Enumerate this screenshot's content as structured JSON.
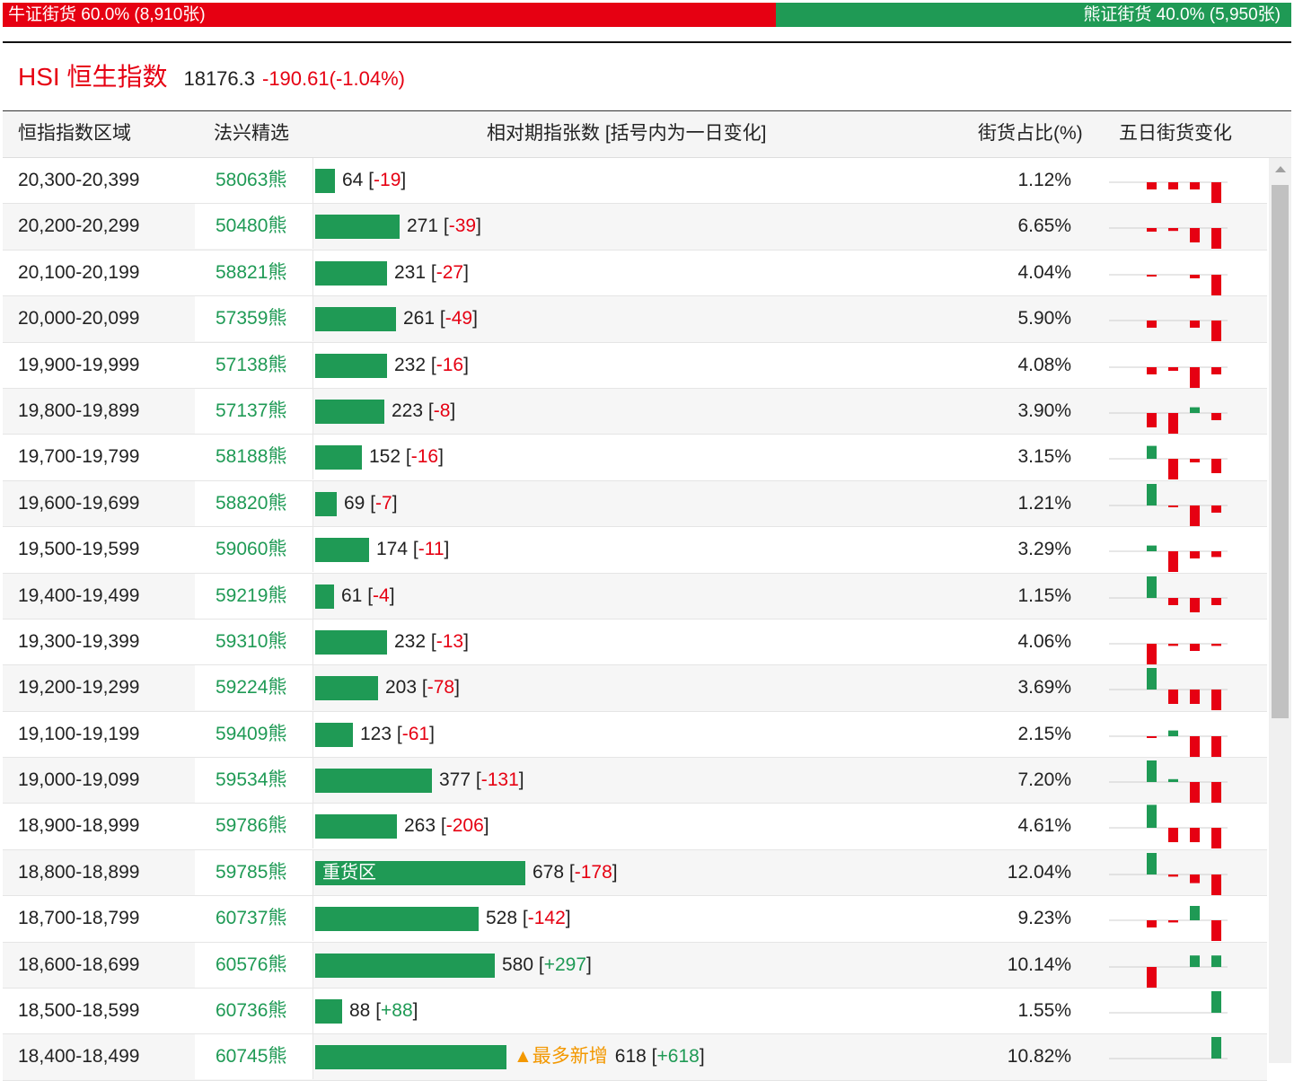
{
  "ratio": {
    "bull_label": "牛证街货 60.0% (8,910张)",
    "bull_fraction": 0.6,
    "bear_label": "熊证街货 40.0% (5,950张)",
    "bear_fraction": 0.4
  },
  "index": {
    "name": "HSI 恒生指数",
    "value": "18176.3",
    "change": "-190.61(-1.04%)"
  },
  "table": {
    "headers": {
      "range": "恒指指数区域",
      "pick": "法兴精选",
      "contracts": "相对期指张数 [括号内为一日变化]",
      "ratio": "街货占比(%)",
      "trend": "五日街货变化"
    },
    "max_bar_value": 678,
    "rows": [
      {
        "range": "20,300-20,399",
        "code": "58063熊",
        "count": "64",
        "delta": "-19",
        "pct": "1.12%",
        "value": 64,
        "trend": [
          0,
          -1,
          -1,
          -1,
          -3
        ]
      },
      {
        "range": "20,200-20,299",
        "code": "50480熊",
        "count": "271",
        "delta": "-39",
        "pct": "6.65%",
        "value": 271,
        "trend": [
          0,
          -0.5,
          -0.4,
          -2,
          -3
        ]
      },
      {
        "range": "20,100-20,199",
        "code": "58821熊",
        "count": "231",
        "delta": "-27",
        "pct": "4.04%",
        "value": 231,
        "trend": [
          0,
          -0.2,
          0,
          -0.5,
          -3
        ]
      },
      {
        "range": "20,000-20,099",
        "code": "57359熊",
        "count": "261",
        "delta": "-49",
        "pct": "5.90%",
        "value": 261,
        "trend": [
          0,
          -1,
          0,
          -1,
          -3
        ]
      },
      {
        "range": "19,900-19,999",
        "code": "57138熊",
        "count": "232",
        "delta": "-16",
        "pct": "4.08%",
        "value": 232,
        "trend": [
          0,
          -1,
          -0.5,
          -3,
          -1
        ]
      },
      {
        "range": "19,800-19,899",
        "code": "57137熊",
        "count": "223",
        "delta": "-8",
        "pct": "3.90%",
        "value": 223,
        "trend": [
          0,
          -2,
          -3,
          0.8,
          -1
        ]
      },
      {
        "range": "19,700-19,799",
        "code": "58188熊",
        "count": "152",
        "delta": "-16",
        "pct": "3.15%",
        "value": 152,
        "trend": [
          0,
          1.8,
          -3,
          -0.5,
          -2
        ]
      },
      {
        "range": "19,600-19,699",
        "code": "58820熊",
        "count": "69",
        "delta": "-7",
        "pct": "1.21%",
        "value": 69,
        "trend": [
          0,
          3,
          -0.2,
          -3,
          -1
        ]
      },
      {
        "range": "19,500-19,599",
        "code": "59060熊",
        "count": "174",
        "delta": "-11",
        "pct": "3.29%",
        "value": 174,
        "trend": [
          0,
          0.8,
          -3,
          -1,
          -0.8
        ]
      },
      {
        "range": "19,400-19,499",
        "code": "59219熊",
        "count": "61",
        "delta": "-4",
        "pct": "1.15%",
        "value": 61,
        "trend": [
          0,
          3,
          -1,
          -2,
          -1
        ]
      },
      {
        "range": "19,300-19,399",
        "code": "59310熊",
        "count": "232",
        "delta": "-13",
        "pct": "4.06%",
        "value": 232,
        "trend": [
          0,
          -3,
          -0.3,
          -1,
          -0.3
        ]
      },
      {
        "range": "19,200-19,299",
        "code": "59224熊",
        "count": "203",
        "delta": "-78",
        "pct": "3.69%",
        "value": 203,
        "trend": [
          0,
          3,
          -2,
          -2,
          -3
        ]
      },
      {
        "range": "19,100-19,199",
        "code": "59409熊",
        "count": "123",
        "delta": "-61",
        "pct": "2.15%",
        "value": 123,
        "trend": [
          0,
          -0.2,
          0.8,
          -3,
          -3
        ]
      },
      {
        "range": "19,000-19,099",
        "code": "59534熊",
        "count": "377",
        "delta": "-131",
        "pct": "7.20%",
        "value": 377,
        "trend": [
          0,
          3,
          0.4,
          -3,
          -3
        ]
      },
      {
        "range": "18,900-18,999",
        "code": "59786熊",
        "count": "263",
        "delta": "-206",
        "pct": "4.61%",
        "value": 263,
        "trend": [
          0,
          3.2,
          -2,
          -2,
          -3
        ]
      },
      {
        "range": "18,800-18,899",
        "code": "59785熊",
        "count": "678",
        "delta": "-178",
        "pct": "12.04%",
        "value": 678,
        "heavy": "重货区",
        "trend": [
          0,
          3,
          -0.3,
          -1.2,
          -3
        ]
      },
      {
        "range": "18,700-18,799",
        "code": "60737熊",
        "count": "528",
        "delta": "-142",
        "pct": "9.23%",
        "value": 528,
        "trend": [
          0,
          -1,
          -0.3,
          2,
          -3
        ]
      },
      {
        "range": "18,600-18,699",
        "code": "60576熊",
        "count": "580",
        "delta": "+297",
        "pct": "10.14%",
        "value": 580,
        "trend": [
          0,
          -3,
          0,
          1.6,
          1.6
        ]
      },
      {
        "range": "18,500-18,599",
        "code": "60736熊",
        "count": "88",
        "delta": "+88",
        "pct": "1.55%",
        "value": 88,
        "trend": [
          0,
          0,
          0,
          0,
          3
        ]
      },
      {
        "range": "18,400-18,499",
        "code": "60745熊",
        "count": "618",
        "delta": "+618",
        "pct": "10.82%",
        "value": 618,
        "tag": "▲最多新增",
        "trend": [
          0,
          0,
          0,
          0,
          3
        ]
      }
    ]
  },
  "colors": {
    "up_red": "#e60012",
    "down_green": "#1f9a55",
    "tag_orange": "#f39800"
  }
}
